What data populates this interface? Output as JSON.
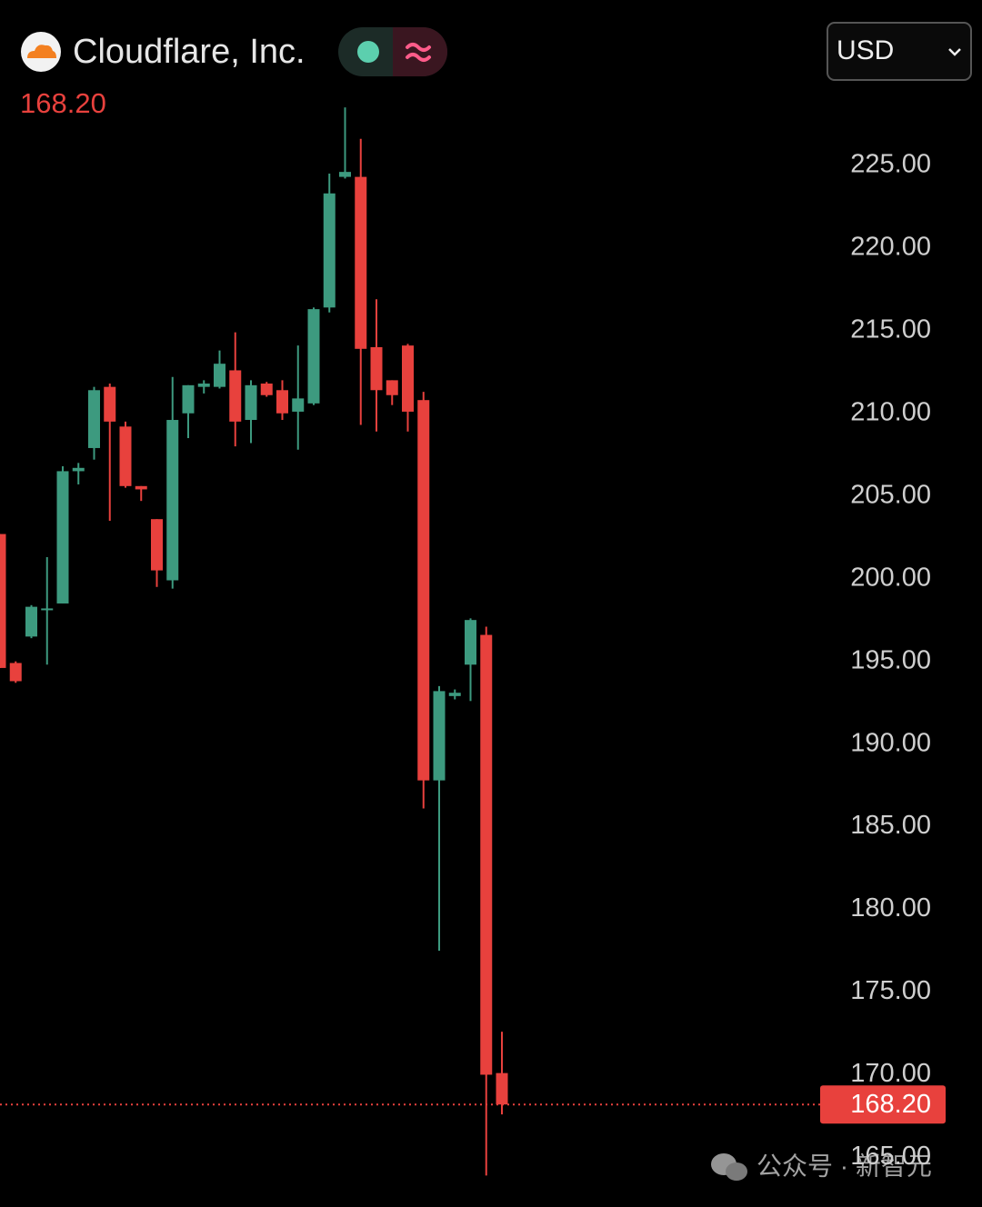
{
  "header": {
    "company": "Cloudflare, Inc.",
    "currency": "USD",
    "watermark": "公众号 · 新智元"
  },
  "chart_data": {
    "type": "candlestick",
    "open": [
      202.7,
      194.9,
      196.5,
      198.1,
      198.5,
      206.5,
      207.9,
      211.6,
      209.2,
      205.6,
      203.6,
      199.9,
      210.0,
      211.6,
      211.6,
      212.6,
      209.6,
      211.8,
      211.4,
      210.1,
      210.6,
      216.4,
      224.3,
      224.3,
      214.0,
      212.0,
      214.1,
      210.8,
      187.8,
      192.9,
      194.8,
      196.6,
      170.1
    ],
    "high": [
      202.7,
      195.0,
      198.4,
      201.3,
      206.8,
      207.0,
      211.6,
      211.8,
      209.5,
      205.6,
      203.6,
      212.2,
      211.7,
      212.0,
      213.8,
      214.9,
      212.0,
      211.9,
      212.0,
      214.1,
      216.4,
      224.5,
      228.5,
      226.6,
      216.9,
      212.0,
      214.2,
      211.3,
      193.5,
      193.3,
      197.6,
      197.1,
      172.6
    ],
    "low": [
      194.6,
      193.7,
      196.4,
      194.8,
      198.5,
      205.7,
      207.2,
      203.5,
      205.5,
      204.7,
      199.5,
      199.4,
      208.5,
      211.2,
      211.5,
      208.0,
      208.2,
      211.0,
      209.6,
      207.8,
      210.5,
      216.1,
      224.2,
      209.3,
      208.9,
      210.5,
      208.9,
      186.1,
      177.5,
      192.7,
      192.6,
      163.9,
      167.6
    ],
    "close": [
      194.6,
      193.8,
      198.3,
      198.2,
      206.5,
      206.7,
      211.4,
      209.5,
      205.6,
      205.4,
      200.5,
      209.6,
      211.7,
      211.8,
      213.0,
      209.5,
      211.7,
      211.1,
      210.0,
      210.9,
      216.3,
      223.3,
      224.6,
      213.9,
      211.4,
      211.1,
      210.1,
      187.8,
      193.2,
      193.1,
      197.5,
      170.0,
      168.2
    ],
    "up_color": "#3d9a7f",
    "down_color": "#e8413d",
    "last_price": {
      "value": 168.2,
      "label": "168.20"
    },
    "ylim": [
      162,
      229.5
    ],
    "yticks": [
      {
        "value": 165,
        "label": "165.00"
      },
      {
        "value": 170,
        "label": "170.00"
      },
      {
        "value": 175,
        "label": "175.00"
      },
      {
        "value": 180,
        "label": "180.00"
      },
      {
        "value": 185,
        "label": "185.00"
      },
      {
        "value": 190,
        "label": "190.00"
      },
      {
        "value": 195,
        "label": "195.00"
      },
      {
        "value": 200,
        "label": "200.00"
      },
      {
        "value": 205,
        "label": "205.00"
      },
      {
        "value": 210,
        "label": "210.00"
      },
      {
        "value": 215,
        "label": "215.00"
      },
      {
        "value": 220,
        "label": "220.00"
      },
      {
        "value": 225,
        "label": "225.00"
      }
    ]
  }
}
